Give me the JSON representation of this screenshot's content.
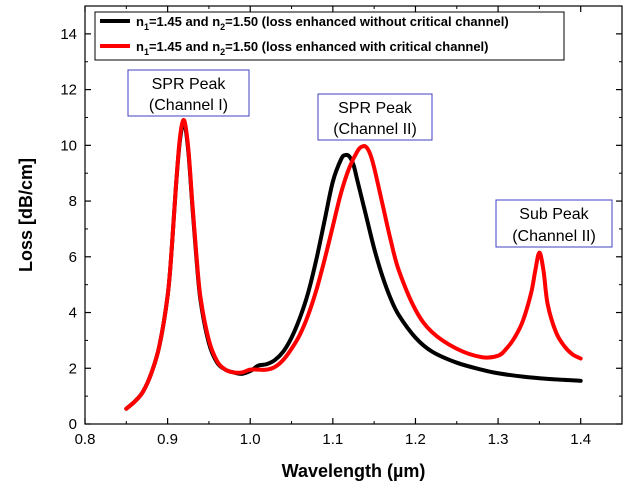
{
  "chart_data": {
    "type": "line",
    "xlabel": "Wavelength (µm)",
    "ylabel": "Loss [dB/cm]",
    "xlim": [
      0.8,
      1.45
    ],
    "ylim": [
      0,
      15
    ],
    "xticks": [
      0.8,
      0.9,
      1.0,
      1.1,
      1.2,
      1.3,
      1.4
    ],
    "yticks": [
      0,
      2,
      4,
      6,
      8,
      10,
      12,
      14
    ],
    "x_tick_labels": [
      "0.8",
      "0.9",
      "1.0",
      "1.1",
      "1.2",
      "1.3",
      "1.4"
    ],
    "y_tick_labels": [
      "0",
      "2",
      "4",
      "6",
      "8",
      "10",
      "12",
      "14"
    ],
    "grid": false,
    "legend_position": "top-left",
    "legend": [
      {
        "pre1": "n",
        "sub1": "1",
        "mid": "=1.45 and n",
        "sub2": "2",
        "post": "=1.50 (loss enhanced without critical channel)",
        "color": "#000000"
      },
      {
        "pre1": "n",
        "sub1": "1",
        "mid": "=1.45 and n",
        "sub2": "2",
        "post": "=1.50 (loss enhanced with critical channel)",
        "color": "#ff0000"
      }
    ],
    "annotations": [
      {
        "line1": "SPR Peak",
        "line2": "(Channel I)"
      },
      {
        "line1": "SPR Peak",
        "line2": "(Channel II)"
      },
      {
        "line1": "Sub Peak",
        "line2": "(Channel II)"
      }
    ],
    "series": [
      {
        "color": "#000000",
        "x": [
          0.85,
          0.86,
          0.87,
          0.88,
          0.89,
          0.9,
          0.905,
          0.91,
          0.915,
          0.92,
          0.925,
          0.93,
          0.935,
          0.94,
          0.95,
          0.96,
          0.97,
          0.98,
          0.99,
          1.0,
          1.005,
          1.01,
          1.02,
          1.03,
          1.04,
          1.05,
          1.06,
          1.07,
          1.08,
          1.09,
          1.1,
          1.11,
          1.115,
          1.12,
          1.125,
          1.13,
          1.14,
          1.15,
          1.16,
          1.17,
          1.18,
          1.2,
          1.22,
          1.25,
          1.28,
          1.3,
          1.33,
          1.36,
          1.4
        ],
        "y": [
          0.55,
          0.8,
          1.15,
          1.8,
          2.8,
          4.6,
          6.3,
          8.5,
          10.2,
          10.8,
          9.8,
          7.8,
          5.9,
          4.4,
          2.9,
          2.2,
          1.95,
          1.85,
          1.8,
          1.9,
          2.0,
          2.1,
          2.15,
          2.3,
          2.6,
          3.1,
          3.8,
          4.7,
          5.9,
          7.3,
          8.7,
          9.5,
          9.65,
          9.6,
          9.3,
          8.7,
          7.5,
          6.3,
          5.3,
          4.5,
          3.9,
          3.1,
          2.6,
          2.2,
          1.95,
          1.82,
          1.7,
          1.62,
          1.55
        ]
      },
      {
        "color": "#ff0000",
        "x": [
          0.85,
          0.86,
          0.87,
          0.88,
          0.89,
          0.9,
          0.905,
          0.91,
          0.915,
          0.92,
          0.925,
          0.93,
          0.935,
          0.94,
          0.95,
          0.96,
          0.97,
          0.98,
          0.99,
          1.0,
          1.01,
          1.02,
          1.03,
          1.04,
          1.05,
          1.06,
          1.07,
          1.08,
          1.09,
          1.1,
          1.11,
          1.12,
          1.13,
          1.135,
          1.14,
          1.145,
          1.15,
          1.16,
          1.17,
          1.18,
          1.2,
          1.22,
          1.25,
          1.28,
          1.3,
          1.31,
          1.32,
          1.33,
          1.34,
          1.345,
          1.35,
          1.355,
          1.36,
          1.37,
          1.38,
          1.39,
          1.4
        ],
        "y": [
          0.55,
          0.8,
          1.15,
          1.8,
          2.8,
          4.6,
          6.3,
          8.5,
          10.3,
          10.9,
          9.9,
          7.9,
          6.0,
          4.5,
          3.0,
          2.25,
          1.95,
          1.85,
          1.85,
          1.95,
          1.95,
          1.95,
          2.05,
          2.3,
          2.7,
          3.2,
          3.9,
          4.8,
          5.9,
          7.1,
          8.3,
          9.2,
          9.8,
          9.95,
          9.95,
          9.7,
          9.2,
          7.9,
          6.6,
          5.5,
          4.1,
          3.3,
          2.7,
          2.4,
          2.45,
          2.7,
          3.1,
          3.7,
          4.7,
          5.5,
          6.15,
          5.5,
          4.3,
          3.3,
          2.8,
          2.5,
          2.35
        ]
      }
    ]
  }
}
